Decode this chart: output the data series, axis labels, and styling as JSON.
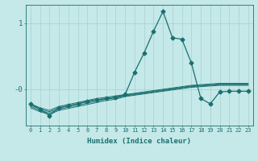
{
  "xlabel": "Humidex (Indice chaleur)",
  "bg_color": "#c5e8e8",
  "line_color": "#1a7070",
  "grid_color": "#a8d0d0",
  "x_ticks": [
    0,
    1,
    2,
    3,
    4,
    5,
    6,
    7,
    8,
    9,
    10,
    11,
    12,
    13,
    14,
    15,
    16,
    17,
    18,
    19,
    20,
    21,
    22,
    23
  ],
  "ylim": [
    -0.55,
    1.28
  ],
  "xlim": [
    -0.5,
    23.5
  ],
  "series": [
    {
      "x": [
        0,
        1,
        2,
        3,
        4,
        5,
        6,
        7,
        8,
        9,
        10,
        11,
        12,
        13,
        14,
        15,
        16,
        17,
        18,
        19,
        20,
        21,
        22,
        23
      ],
      "y": [
        -0.22,
        -0.3,
        -0.4,
        -0.28,
        -0.25,
        -0.22,
        -0.18,
        -0.16,
        -0.14,
        -0.12,
        -0.08,
        0.26,
        0.55,
        0.88,
        1.18,
        0.78,
        0.76,
        0.4,
        -0.14,
        -0.22,
        -0.04,
        -0.03,
        -0.03,
        -0.03
      ],
      "marker": "D",
      "markersize": 2.5
    },
    {
      "x": [
        0,
        1,
        2,
        3,
        4,
        5,
        6,
        7,
        8,
        9,
        10,
        11,
        12,
        13,
        14,
        15,
        16,
        17,
        18,
        19,
        20,
        21,
        22,
        23
      ],
      "y": [
        -0.22,
        -0.28,
        -0.32,
        -0.26,
        -0.23,
        -0.2,
        -0.17,
        -0.14,
        -0.12,
        -0.1,
        -0.08,
        -0.06,
        -0.04,
        -0.02,
        0.0,
        0.02,
        0.04,
        0.06,
        0.07,
        0.08,
        0.09,
        0.09,
        0.09,
        0.09
      ],
      "marker": null
    },
    {
      "x": [
        0,
        1,
        2,
        3,
        4,
        5,
        6,
        7,
        8,
        9,
        10,
        11,
        12,
        13,
        14,
        15,
        16,
        17,
        18,
        19,
        20,
        21,
        22,
        23
      ],
      "y": [
        -0.24,
        -0.3,
        -0.34,
        -0.28,
        -0.25,
        -0.22,
        -0.19,
        -0.16,
        -0.14,
        -0.12,
        -0.09,
        -0.07,
        -0.05,
        -0.03,
        -0.01,
        0.01,
        0.03,
        0.05,
        0.06,
        0.07,
        0.08,
        0.08,
        0.08,
        0.08
      ],
      "marker": null
    },
    {
      "x": [
        0,
        1,
        2,
        3,
        4,
        5,
        6,
        7,
        8,
        9,
        10,
        11,
        12,
        13,
        14,
        15,
        16,
        17,
        18,
        19,
        20,
        21,
        22,
        23
      ],
      "y": [
        -0.26,
        -0.32,
        -0.36,
        -0.3,
        -0.27,
        -0.24,
        -0.21,
        -0.18,
        -0.15,
        -0.13,
        -0.1,
        -0.08,
        -0.06,
        -0.04,
        -0.02,
        0.0,
        0.02,
        0.04,
        0.05,
        0.06,
        0.07,
        0.07,
        0.07,
        0.07
      ],
      "marker": null
    },
    {
      "x": [
        0,
        1,
        2,
        3,
        4,
        5,
        6,
        7,
        8,
        9,
        10,
        11,
        12,
        13,
        14,
        15,
        16,
        17,
        18,
        19,
        20,
        21,
        22,
        23
      ],
      "y": [
        -0.28,
        -0.34,
        -0.38,
        -0.32,
        -0.29,
        -0.26,
        -0.23,
        -0.2,
        -0.17,
        -0.15,
        -0.11,
        -0.09,
        -0.07,
        -0.05,
        -0.03,
        -0.01,
        0.01,
        0.03,
        0.04,
        0.05,
        0.06,
        0.06,
        0.06,
        0.06
      ],
      "marker": null
    }
  ]
}
